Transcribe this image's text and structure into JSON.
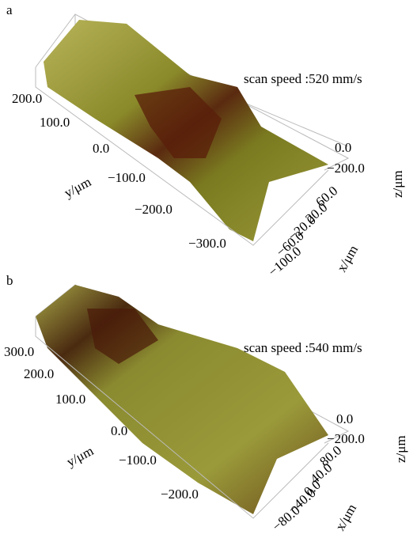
{
  "panels": [
    {
      "label": "a",
      "annotation": "scan speed :520 mm/s",
      "y_axis_title": "y/μm",
      "y_ticks": [
        "200.0",
        "100.0",
        "0.0",
        "−100.0",
        "−200.0",
        "−300.0"
      ],
      "x_axis_title": "x/μm",
      "x_ticks": [
        "60.0",
        "20.0",
        "−20.0",
        "−60.0",
        "−100.0"
      ],
      "z_axis_title": "z/μm",
      "z_ticks": [
        "0.0",
        "−200.0"
      ]
    },
    {
      "label": "b",
      "annotation": "scan speed :540 mm/s",
      "y_axis_title": "y/μm",
      "y_ticks": [
        "300.0",
        "200.0",
        "100.0",
        "0.0",
        "−100.0",
        "−200.0"
      ],
      "x_axis_title": "x/μm",
      "x_ticks": [
        "80.0",
        "40.0",
        "0.0",
        "−40.0",
        "−80.0"
      ],
      "z_axis_title": "z/μm",
      "z_ticks": [
        "0.0",
        "−200.0"
      ]
    }
  ]
}
